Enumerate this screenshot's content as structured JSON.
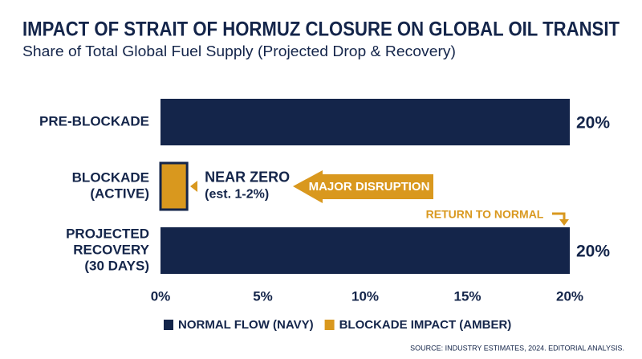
{
  "chart_data": {
    "type": "bar",
    "orientation": "horizontal",
    "title": "IMPACT OF STRAIT OF HORMUZ CLOSURE ON GLOBAL OIL TRANSIT",
    "subtitle": "Share of Total Global Fuel Supply (Projected Drop & Recovery)",
    "categories": [
      [
        "PRE-BLOCKADE"
      ],
      [
        "BLOCKADE",
        "(ACTIVE)"
      ],
      [
        "PROJECTED",
        "RECOVERY",
        "(30 DAYS)"
      ]
    ],
    "series": [
      {
        "name": "NORMAL FLOW (NAVY)",
        "color": "#14254a",
        "values": [
          20,
          null,
          20
        ],
        "value_labels": [
          "20%",
          null,
          "20%"
        ]
      },
      {
        "name": "BLOCKADE IMPACT (AMBER)",
        "color": "#d9981e",
        "values": [
          null,
          1.3,
          null
        ],
        "value_labels": [
          null,
          [
            "NEAR ZERO",
            "(est. 1-2%)"
          ],
          null
        ]
      }
    ],
    "xlim": [
      0,
      20
    ],
    "xticks": [
      {
        "value": 0,
        "label": "0%"
      },
      {
        "value": 5,
        "label": "5%"
      },
      {
        "value": 10,
        "label": "10%"
      },
      {
        "value": 15,
        "label": "15%"
      },
      {
        "value": 20,
        "label": "20%"
      }
    ],
    "grid": false,
    "annotations": [
      "MAJOR DISRUPTION",
      "RETURN TO NORMAL"
    ],
    "source": "SOURCE: INDUSTRY ESTIMATES, 2024. EDITORIAL ANALYSIS."
  }
}
